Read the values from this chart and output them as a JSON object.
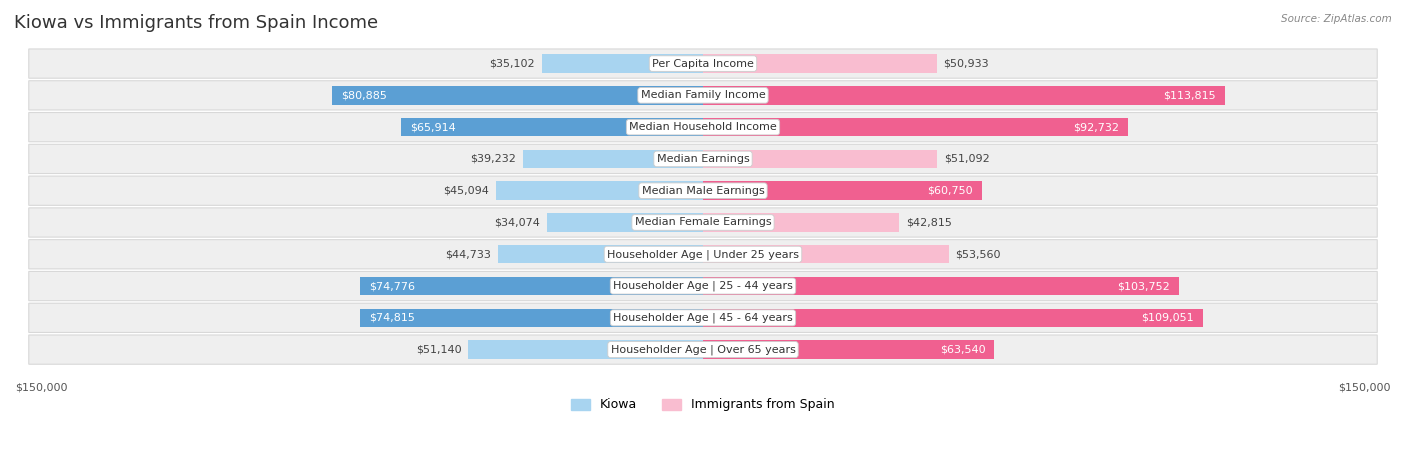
{
  "title": "Kiowa vs Immigrants from Spain Income",
  "source": "Source: ZipAtlas.com",
  "categories": [
    "Per Capita Income",
    "Median Family Income",
    "Median Household Income",
    "Median Earnings",
    "Median Male Earnings",
    "Median Female Earnings",
    "Householder Age | Under 25 years",
    "Householder Age | 25 - 44 years",
    "Householder Age | 45 - 64 years",
    "Householder Age | Over 65 years"
  ],
  "kiowa_values": [
    35102,
    80885,
    65914,
    39232,
    45094,
    34074,
    44733,
    74776,
    74815,
    51140
  ],
  "spain_values": [
    50933,
    113815,
    92732,
    51092,
    60750,
    42815,
    53560,
    103752,
    109051,
    63540
  ],
  "kiowa_color_light": "#a8d4f0",
  "kiowa_color_dark": "#5b9fd4",
  "spain_color_light": "#f9bdd0",
  "spain_color_dark": "#f06090",
  "kiowa_large_threshold": 60000,
  "spain_large_threshold": 60000,
  "row_bg_color": "#efefef",
  "row_border_color": "#d8d8d8",
  "max_value": 150000,
  "xlabel_left": "$150,000",
  "xlabel_right": "$150,000",
  "legend_kiowa": "Kiowa",
  "legend_spain": "Immigrants from Spain",
  "title_fontsize": 13,
  "label_fontsize": 8.0,
  "value_fontsize": 8.0,
  "bar_height": 0.58
}
